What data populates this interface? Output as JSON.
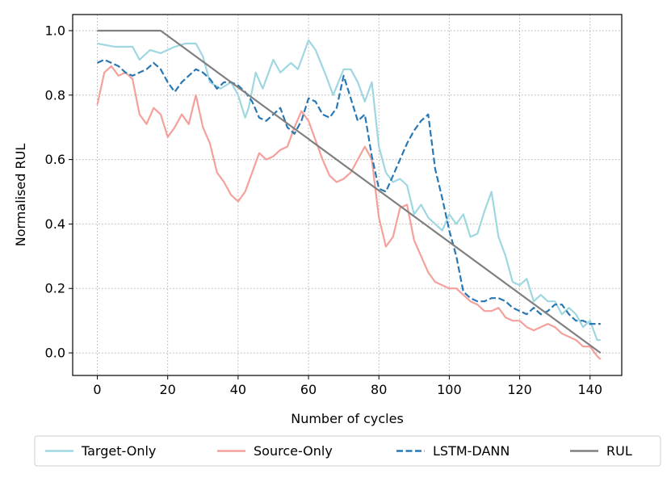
{
  "chart_data": {
    "type": "line",
    "title": "",
    "xlabel": "Number of cycles",
    "ylabel": "Normalised RUL",
    "xlim": [
      -7,
      149
    ],
    "ylim": [
      -0.07,
      1.05
    ],
    "xticks": [
      0,
      20,
      40,
      60,
      80,
      100,
      120,
      140
    ],
    "yticks": [
      0.0,
      0.2,
      0.4,
      0.6,
      0.8,
      1.0
    ],
    "xtick_labels": [
      "0",
      "20",
      "40",
      "60",
      "80",
      "100",
      "120",
      "140"
    ],
    "ytick_labels": [
      "0.0",
      "0.2",
      "0.4",
      "0.6",
      "0.8",
      "1.0"
    ],
    "grid": true,
    "legend_position": "bottom-outside",
    "series": [
      {
        "name": "Target-Only",
        "color": "#9fd7e0",
        "style": "solid",
        "x": [
          0,
          5,
          10,
          12,
          15,
          18,
          20,
          22,
          25,
          28,
          30,
          32,
          35,
          38,
          40,
          42,
          43,
          45,
          47,
          50,
          52,
          55,
          57,
          60,
          62,
          65,
          67,
          70,
          72,
          74,
          76,
          78,
          80,
          82,
          84,
          86,
          88,
          90,
          92,
          94,
          96,
          98,
          100,
          102,
          104,
          106,
          108,
          110,
          112,
          114,
          116,
          118,
          120,
          122,
          124,
          126,
          128,
          130,
          132,
          134,
          136,
          138,
          140,
          142,
          143
        ],
        "values": [
          0.96,
          0.95,
          0.95,
          0.91,
          0.94,
          0.93,
          0.94,
          0.95,
          0.96,
          0.96,
          0.92,
          0.84,
          0.82,
          0.84,
          0.8,
          0.73,
          0.76,
          0.87,
          0.82,
          0.91,
          0.87,
          0.9,
          0.88,
          0.97,
          0.94,
          0.86,
          0.8,
          0.88,
          0.88,
          0.84,
          0.78,
          0.84,
          0.64,
          0.56,
          0.53,
          0.54,
          0.52,
          0.43,
          0.46,
          0.42,
          0.4,
          0.38,
          0.43,
          0.4,
          0.43,
          0.36,
          0.37,
          0.44,
          0.5,
          0.36,
          0.3,
          0.22,
          0.21,
          0.23,
          0.16,
          0.18,
          0.16,
          0.16,
          0.12,
          0.14,
          0.12,
          0.08,
          0.1,
          0.04,
          0.04
        ]
      },
      {
        "name": "Source-Only",
        "color": "#f4a09b",
        "style": "solid",
        "x": [
          0,
          2,
          4,
          6,
          8,
          10,
          12,
          14,
          16,
          18,
          20,
          22,
          24,
          26,
          28,
          30,
          32,
          34,
          36,
          38,
          40,
          42,
          44,
          46,
          48,
          50,
          52,
          54,
          56,
          58,
          60,
          62,
          64,
          66,
          68,
          70,
          72,
          74,
          76,
          78,
          80,
          82,
          84,
          86,
          88,
          90,
          92,
          94,
          96,
          98,
          100,
          102,
          104,
          106,
          108,
          110,
          112,
          114,
          116,
          118,
          120,
          122,
          124,
          126,
          128,
          130,
          132,
          134,
          136,
          138,
          140,
          142,
          143
        ],
        "values": [
          0.77,
          0.87,
          0.89,
          0.86,
          0.87,
          0.85,
          0.74,
          0.71,
          0.76,
          0.74,
          0.67,
          0.7,
          0.74,
          0.71,
          0.8,
          0.7,
          0.65,
          0.56,
          0.53,
          0.49,
          0.47,
          0.5,
          0.56,
          0.62,
          0.6,
          0.61,
          0.63,
          0.64,
          0.7,
          0.75,
          0.72,
          0.66,
          0.6,
          0.55,
          0.53,
          0.54,
          0.56,
          0.6,
          0.64,
          0.6,
          0.42,
          0.33,
          0.36,
          0.45,
          0.46,
          0.35,
          0.3,
          0.25,
          0.22,
          0.21,
          0.2,
          0.2,
          0.18,
          0.16,
          0.15,
          0.13,
          0.13,
          0.14,
          0.11,
          0.1,
          0.1,
          0.08,
          0.07,
          0.08,
          0.09,
          0.08,
          0.06,
          0.05,
          0.04,
          0.02,
          0.02,
          -0.01,
          -0.02
        ]
      },
      {
        "name": "LSTM-DANN",
        "color": "#2878b5",
        "style": "dashed",
        "x": [
          0,
          2,
          4,
          6,
          8,
          10,
          12,
          14,
          16,
          18,
          20,
          22,
          24,
          26,
          28,
          30,
          32,
          34,
          36,
          38,
          40,
          42,
          44,
          46,
          48,
          50,
          52,
          54,
          56,
          58,
          60,
          62,
          64,
          66,
          68,
          70,
          72,
          74,
          76,
          78,
          80,
          82,
          84,
          86,
          88,
          90,
          92,
          94,
          96,
          98,
          100,
          102,
          104,
          106,
          108,
          110,
          112,
          114,
          116,
          118,
          120,
          122,
          124,
          126,
          128,
          130,
          132,
          134,
          136,
          138,
          140,
          142,
          143
        ],
        "values": [
          0.9,
          0.91,
          0.9,
          0.89,
          0.87,
          0.86,
          0.87,
          0.88,
          0.9,
          0.88,
          0.84,
          0.81,
          0.84,
          0.86,
          0.88,
          0.87,
          0.85,
          0.82,
          0.84,
          0.84,
          0.83,
          0.81,
          0.78,
          0.73,
          0.72,
          0.74,
          0.76,
          0.7,
          0.68,
          0.72,
          0.79,
          0.78,
          0.74,
          0.73,
          0.76,
          0.86,
          0.79,
          0.72,
          0.74,
          0.61,
          0.51,
          0.5,
          0.55,
          0.6,
          0.65,
          0.69,
          0.72,
          0.74,
          0.57,
          0.48,
          0.38,
          0.3,
          0.19,
          0.17,
          0.16,
          0.16,
          0.17,
          0.17,
          0.16,
          0.14,
          0.13,
          0.12,
          0.14,
          0.12,
          0.13,
          0.15,
          0.15,
          0.12,
          0.1,
          0.1,
          0.09,
          0.09,
          0.09
        ]
      },
      {
        "name": "RUL",
        "color": "#808080",
        "style": "solid",
        "x": [
          0,
          18,
          143
        ],
        "values": [
          1.0,
          1.0,
          0.0
        ]
      }
    ]
  }
}
